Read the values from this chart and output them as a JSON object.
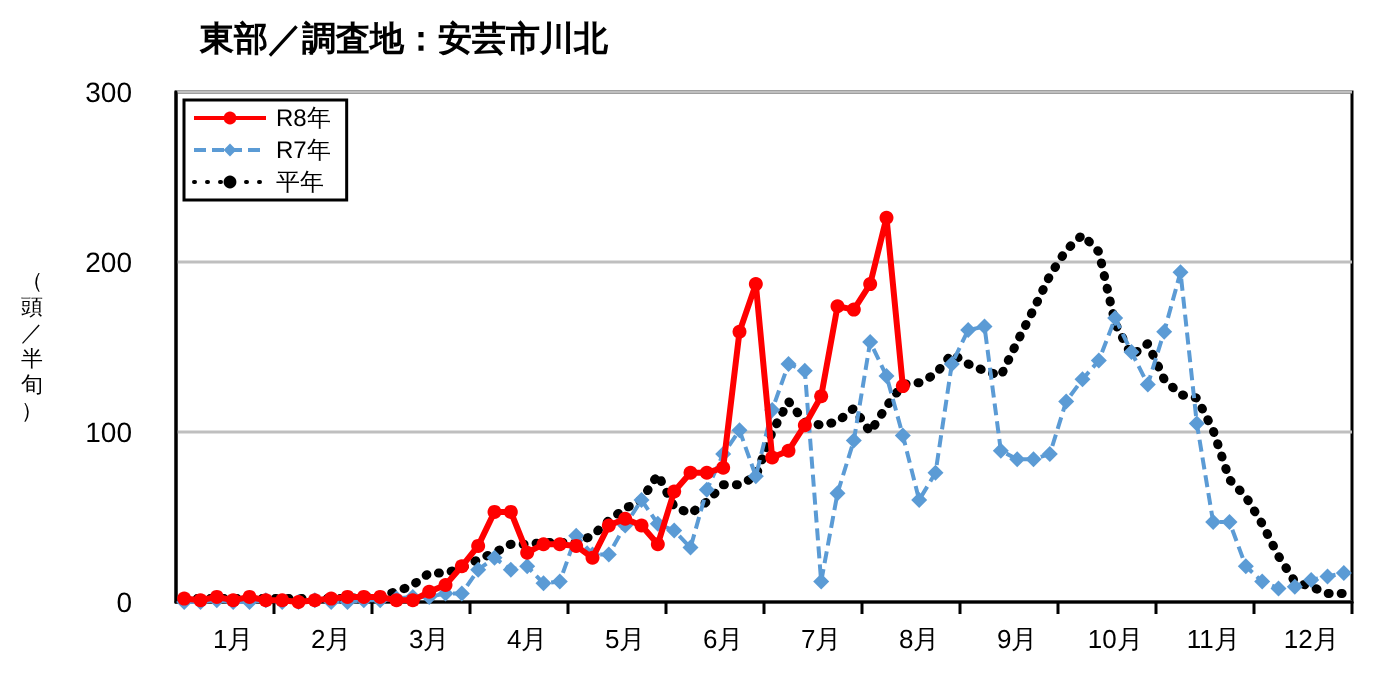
{
  "chart_data": {
    "type": "line",
    "title": "東部／調査地：安芸市川北",
    "ylabel": "（頭／半旬）",
    "categories": [
      null,
      null,
      null,
      "1月",
      null,
      null,
      null,
      null,
      null,
      "2月",
      null,
      null,
      null,
      null,
      null,
      "3月",
      null,
      null,
      null,
      null,
      null,
      "4月",
      null,
      null,
      null,
      null,
      null,
      "5月",
      null,
      null,
      null,
      null,
      null,
      "6月",
      null,
      null,
      null,
      null,
      null,
      "7月",
      null,
      null,
      null,
      null,
      null,
      "8月",
      null,
      null,
      null,
      null,
      null,
      "9月",
      null,
      null,
      null,
      null,
      null,
      "10月",
      null,
      null,
      null,
      null,
      null,
      "11月",
      null,
      null,
      null,
      null,
      null,
      "12月",
      null,
      null
    ],
    "ylim": [
      0,
      300
    ],
    "yticks": [
      0,
      100,
      200,
      300
    ],
    "grid": "y",
    "legend": "top left",
    "series": [
      {
        "name": "R8年",
        "color": "#ff0000",
        "marker": "circle",
        "line_style": "solid",
        "values": [
          2,
          1,
          3,
          1,
          3,
          1,
          1,
          0,
          1,
          2,
          3,
          3,
          3,
          1,
          1,
          6,
          10,
          21,
          33,
          53,
          53,
          29,
          34,
          34,
          33,
          26,
          45,
          49,
          45,
          34,
          65,
          76,
          76,
          79,
          159,
          187,
          85,
          89,
          104,
          121,
          174,
          172,
          187,
          226,
          127,
          null,
          null,
          null,
          null,
          null,
          null,
          null,
          null,
          null,
          null,
          null,
          null,
          null,
          null,
          null,
          null,
          null,
          null,
          null,
          null,
          null,
          null,
          null,
          null,
          null,
          null,
          null
        ]
      },
      {
        "name": "R7年",
        "color": "#5b9bd5",
        "marker": "diamond",
        "line_style": "dashed",
        "values": [
          0,
          0,
          1,
          0,
          0,
          1,
          0,
          0,
          1,
          0,
          0,
          1,
          1,
          2,
          3,
          3,
          5,
          5,
          19,
          26,
          19,
          21,
          11,
          12,
          39,
          28,
          28,
          45,
          60,
          46,
          42,
          32,
          66,
          87,
          101,
          74,
          113,
          140,
          136,
          12,
          64,
          95,
          153,
          133,
          98,
          60,
          76,
          140,
          160,
          162,
          89,
          84,
          84,
          87,
          118,
          131,
          142,
          167,
          147,
          128,
          159,
          194,
          105,
          47,
          47,
          21,
          12,
          8,
          9,
          13,
          15,
          17
        ]
      },
      {
        "name": "平年",
        "color": "#000000",
        "marker": "none",
        "line_style": "dotted",
        "values": [
          2,
          2,
          2,
          2,
          2,
          2,
          2,
          2,
          2,
          2,
          2,
          3,
          4,
          6,
          10,
          17,
          17,
          20,
          25,
          29,
          34,
          34,
          35,
          35,
          35,
          39,
          48,
          55,
          60,
          75,
          56,
          52,
          59,
          69,
          69,
          74,
          100,
          118,
          106,
          104,
          106,
          114,
          100,
          115,
          128,
          129,
          134,
          146,
          140,
          136,
          133,
          153,
          172,
          192,
          207,
          216,
          206,
          164,
          145,
          152,
          131,
          122,
          120,
          101,
          72,
          62,
          46,
          27,
          12,
          9,
          5,
          5
        ]
      }
    ]
  }
}
